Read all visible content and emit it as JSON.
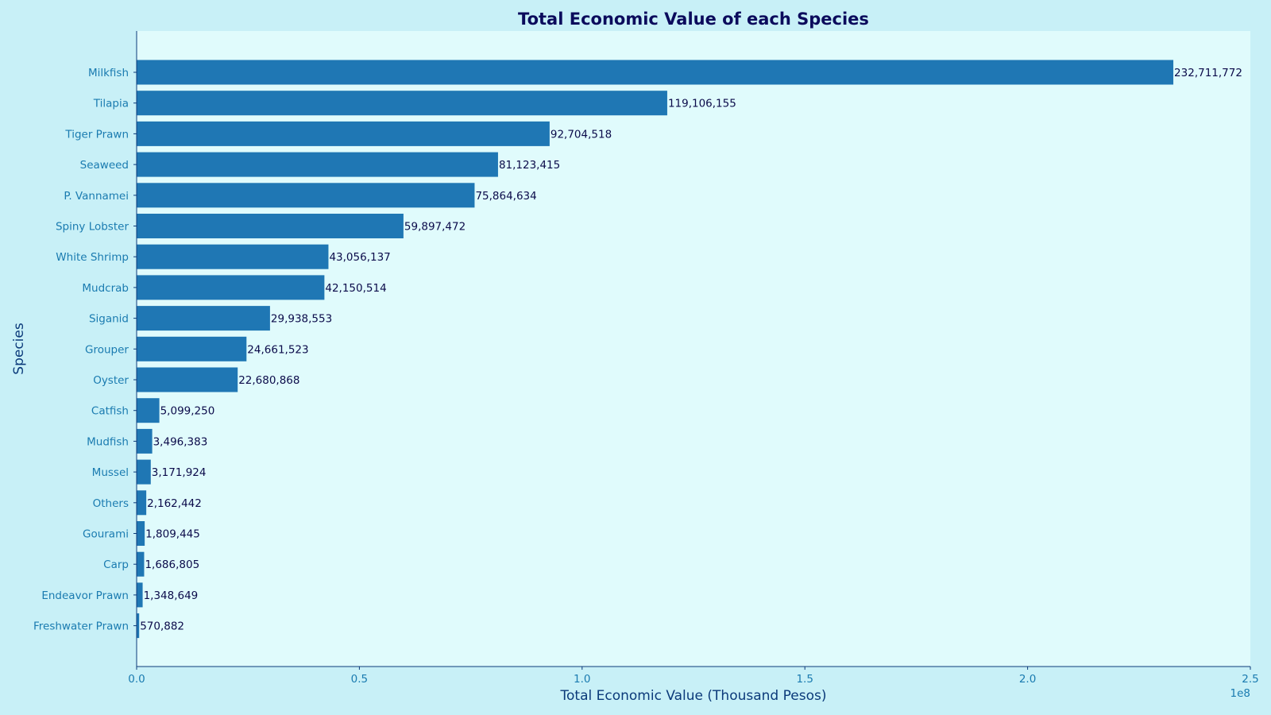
{
  "chart_data": {
    "type": "bar",
    "orientation": "horizontal",
    "title": "Total Economic Value of each Species",
    "xlabel": "Total Economic Value (Thousand Pesos)",
    "ylabel": "Species",
    "x_offset_label": "1e8",
    "xlim": [
      0,
      250000000
    ],
    "x_ticks": [
      0,
      50000000,
      100000000,
      150000000,
      200000000,
      250000000
    ],
    "x_tick_labels": [
      "0.0",
      "0.5",
      "1.0",
      "1.5",
      "2.0",
      "2.5"
    ],
    "grid": false,
    "colors": {
      "figure_background": "#c8f0f7",
      "plot_background": "#e0fbfc",
      "bar": "#1f77b4",
      "title": "#0b0b5c",
      "axis_label": "#0b3a7a",
      "tick_label": "#1a7bb0",
      "data_label": "#0b0b4a",
      "axis_line": "#0b3a7a"
    },
    "categories": [
      "Milkfish",
      "Tilapia",
      "Tiger Prawn",
      "Seaweed",
      "P. Vannamei",
      "Spiny Lobster",
      "White Shrimp",
      "Mudcrab",
      "Siganid",
      "Grouper",
      "Oyster",
      "Catfish",
      "Mudfish",
      "Mussel",
      "Others",
      "Gourami",
      "Carp",
      "Endeavor Prawn",
      "Freshwater Prawn"
    ],
    "values": [
      232711772,
      119106155,
      92704518,
      81123415,
      75864634,
      59897472,
      43056137,
      42150514,
      29938553,
      24661523,
      22680868,
      5099250,
      3496383,
      3171924,
      2162442,
      1809445,
      1686805,
      1348649,
      570882
    ],
    "data_labels": [
      "232,711,772",
      "119,106,155",
      "92,704,518",
      "81,123,415",
      "75,864,634",
      "59,897,472",
      "43,056,137",
      "42,150,514",
      "29,938,553",
      "24,661,523",
      "22,680,868",
      "5,099,250",
      "3,496,383",
      "3,171,924",
      "2,162,442",
      "1,809,445",
      "1,686,805",
      "1,348,649",
      "570,882"
    ]
  }
}
